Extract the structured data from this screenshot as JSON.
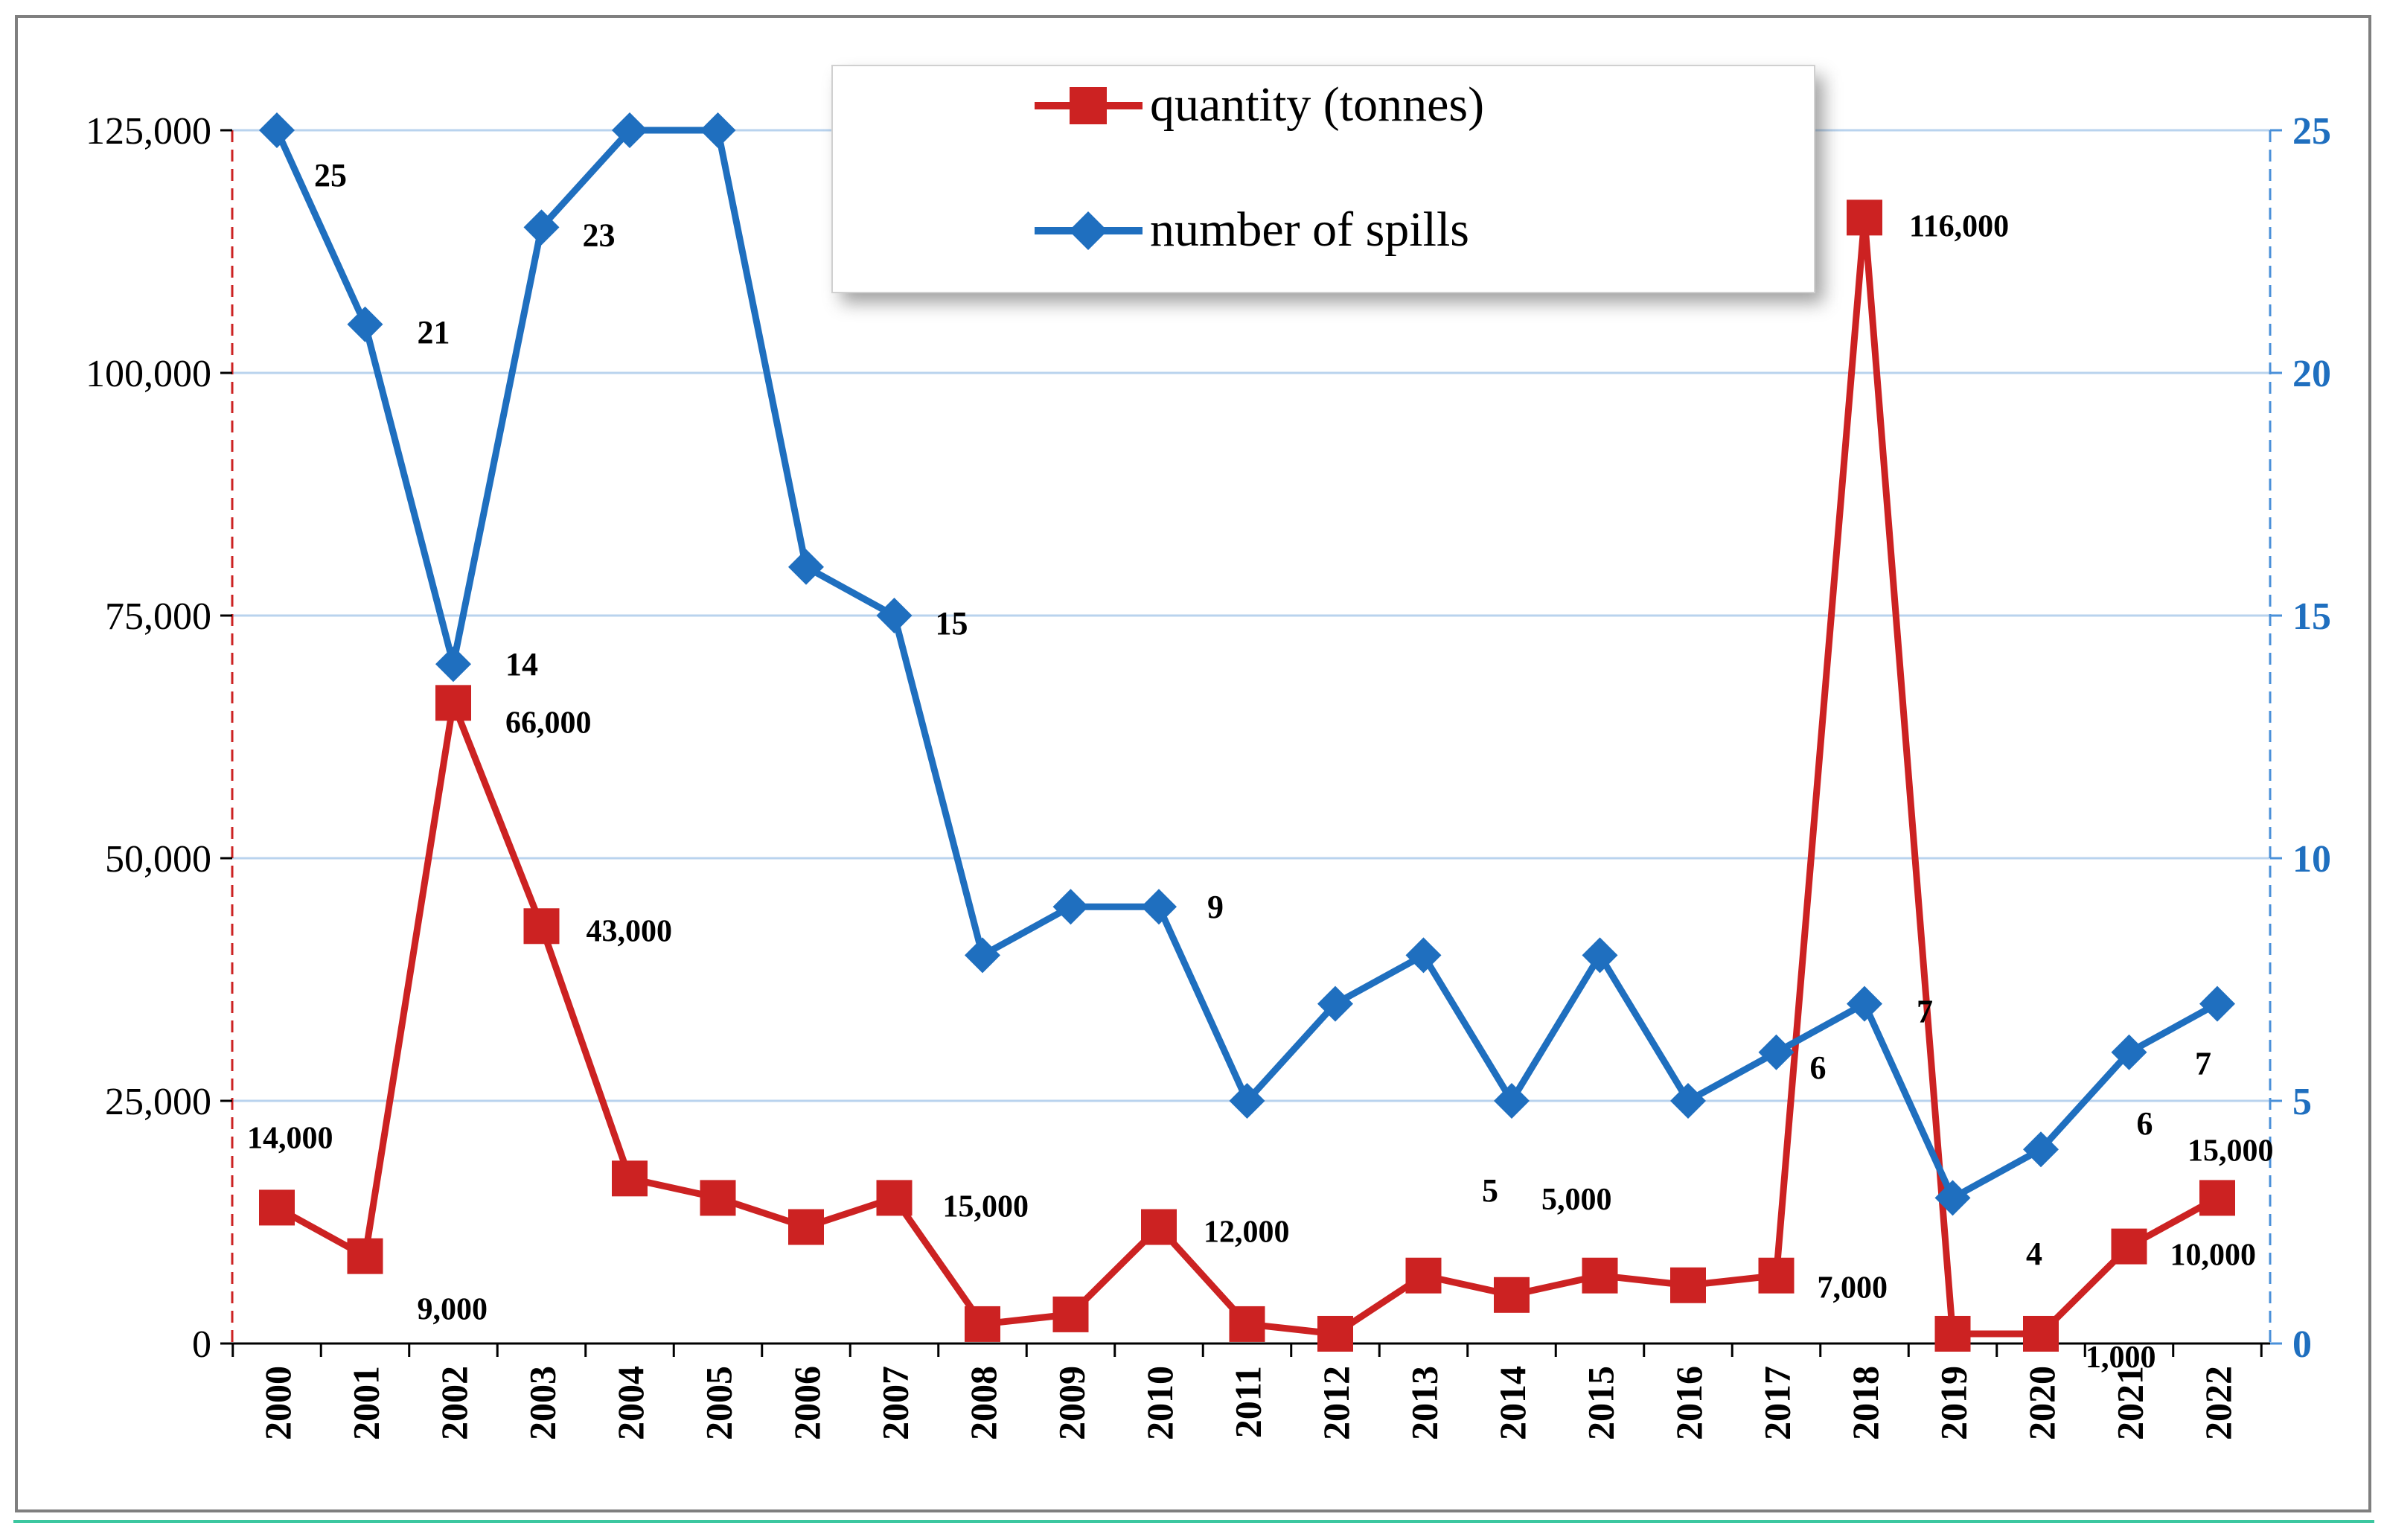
{
  "chart_data": {
    "type": "line",
    "categories": [
      "2000",
      "2001",
      "2002",
      "2003",
      "2004",
      "2005",
      "2006",
      "2007",
      "2008",
      "2009",
      "2010",
      "2011",
      "2012",
      "2013",
      "2014",
      "2015",
      "2016",
      "2017",
      "2018",
      "2019",
      "2020",
      "2021",
      "2022"
    ],
    "left_axis": {
      "ylim": [
        0,
        125000
      ],
      "ticks": [
        "0",
        "25,000",
        "50,000",
        "75,000",
        "100,000",
        "125,000"
      ],
      "tick_values": [
        0,
        25000,
        50000,
        75000,
        100000,
        125000
      ]
    },
    "right_axis": {
      "ylim": [
        0,
        25
      ],
      "ticks": [
        "0",
        "5",
        "10",
        "15",
        "20",
        "25"
      ],
      "tick_values": [
        0,
        5,
        10,
        15,
        20,
        25
      ]
    },
    "series": [
      {
        "name": "quantity (tonnes)",
        "axis": "left",
        "color": "#cc2222",
        "marker": "square",
        "values": [
          14000,
          9000,
          66000,
          43000,
          17000,
          15000,
          12000,
          15000,
          2000,
          3000,
          12000,
          2000,
          1000,
          7000,
          5000,
          7000,
          6000,
          7000,
          116000,
          1000,
          1000,
          10000,
          15000
        ]
      },
      {
        "name": "number of spills",
        "axis": "right",
        "color": "#1f6fbf",
        "marker": "diamond",
        "values": [
          25,
          21,
          14,
          23,
          25,
          25,
          16,
          15,
          8,
          9,
          9,
          5,
          7,
          8,
          5,
          8,
          5,
          6,
          7,
          3,
          4,
          6,
          7
        ]
      }
    ],
    "quantity_labels": [
      {
        "index": 0,
        "text": "14,000"
      },
      {
        "index": 1,
        "text": "9,000"
      },
      {
        "index": 2,
        "text": "66,000"
      },
      {
        "index": 3,
        "text": "43,000"
      },
      {
        "index": 7,
        "text": "15,000"
      },
      {
        "index": 10,
        "text": "12,000"
      },
      {
        "index": 14,
        "text": "5,000"
      },
      {
        "index": 17,
        "text": "7,000"
      },
      {
        "index": 18,
        "text": "116,000"
      },
      {
        "index": 20,
        "text": "1,000"
      },
      {
        "index": 21,
        "text": "10,000"
      },
      {
        "index": 22,
        "text": "15,000"
      }
    ],
    "spill_labels": [
      {
        "index": 0,
        "text": "25"
      },
      {
        "index": 1,
        "text": "21"
      },
      {
        "index": 2,
        "text": "14"
      },
      {
        "index": 3,
        "text": "23"
      },
      {
        "index": 7,
        "text": "15"
      },
      {
        "index": 10,
        "text": "9"
      },
      {
        "index": 14,
        "text": "5"
      },
      {
        "index": 17,
        "text": "6"
      },
      {
        "index": 18,
        "text": "7"
      },
      {
        "index": 20,
        "text": "4"
      },
      {
        "index": 21,
        "text": "6"
      },
      {
        "index": 22,
        "text": "7"
      }
    ],
    "legend": {
      "placement": "top-center"
    },
    "grid": true
  }
}
